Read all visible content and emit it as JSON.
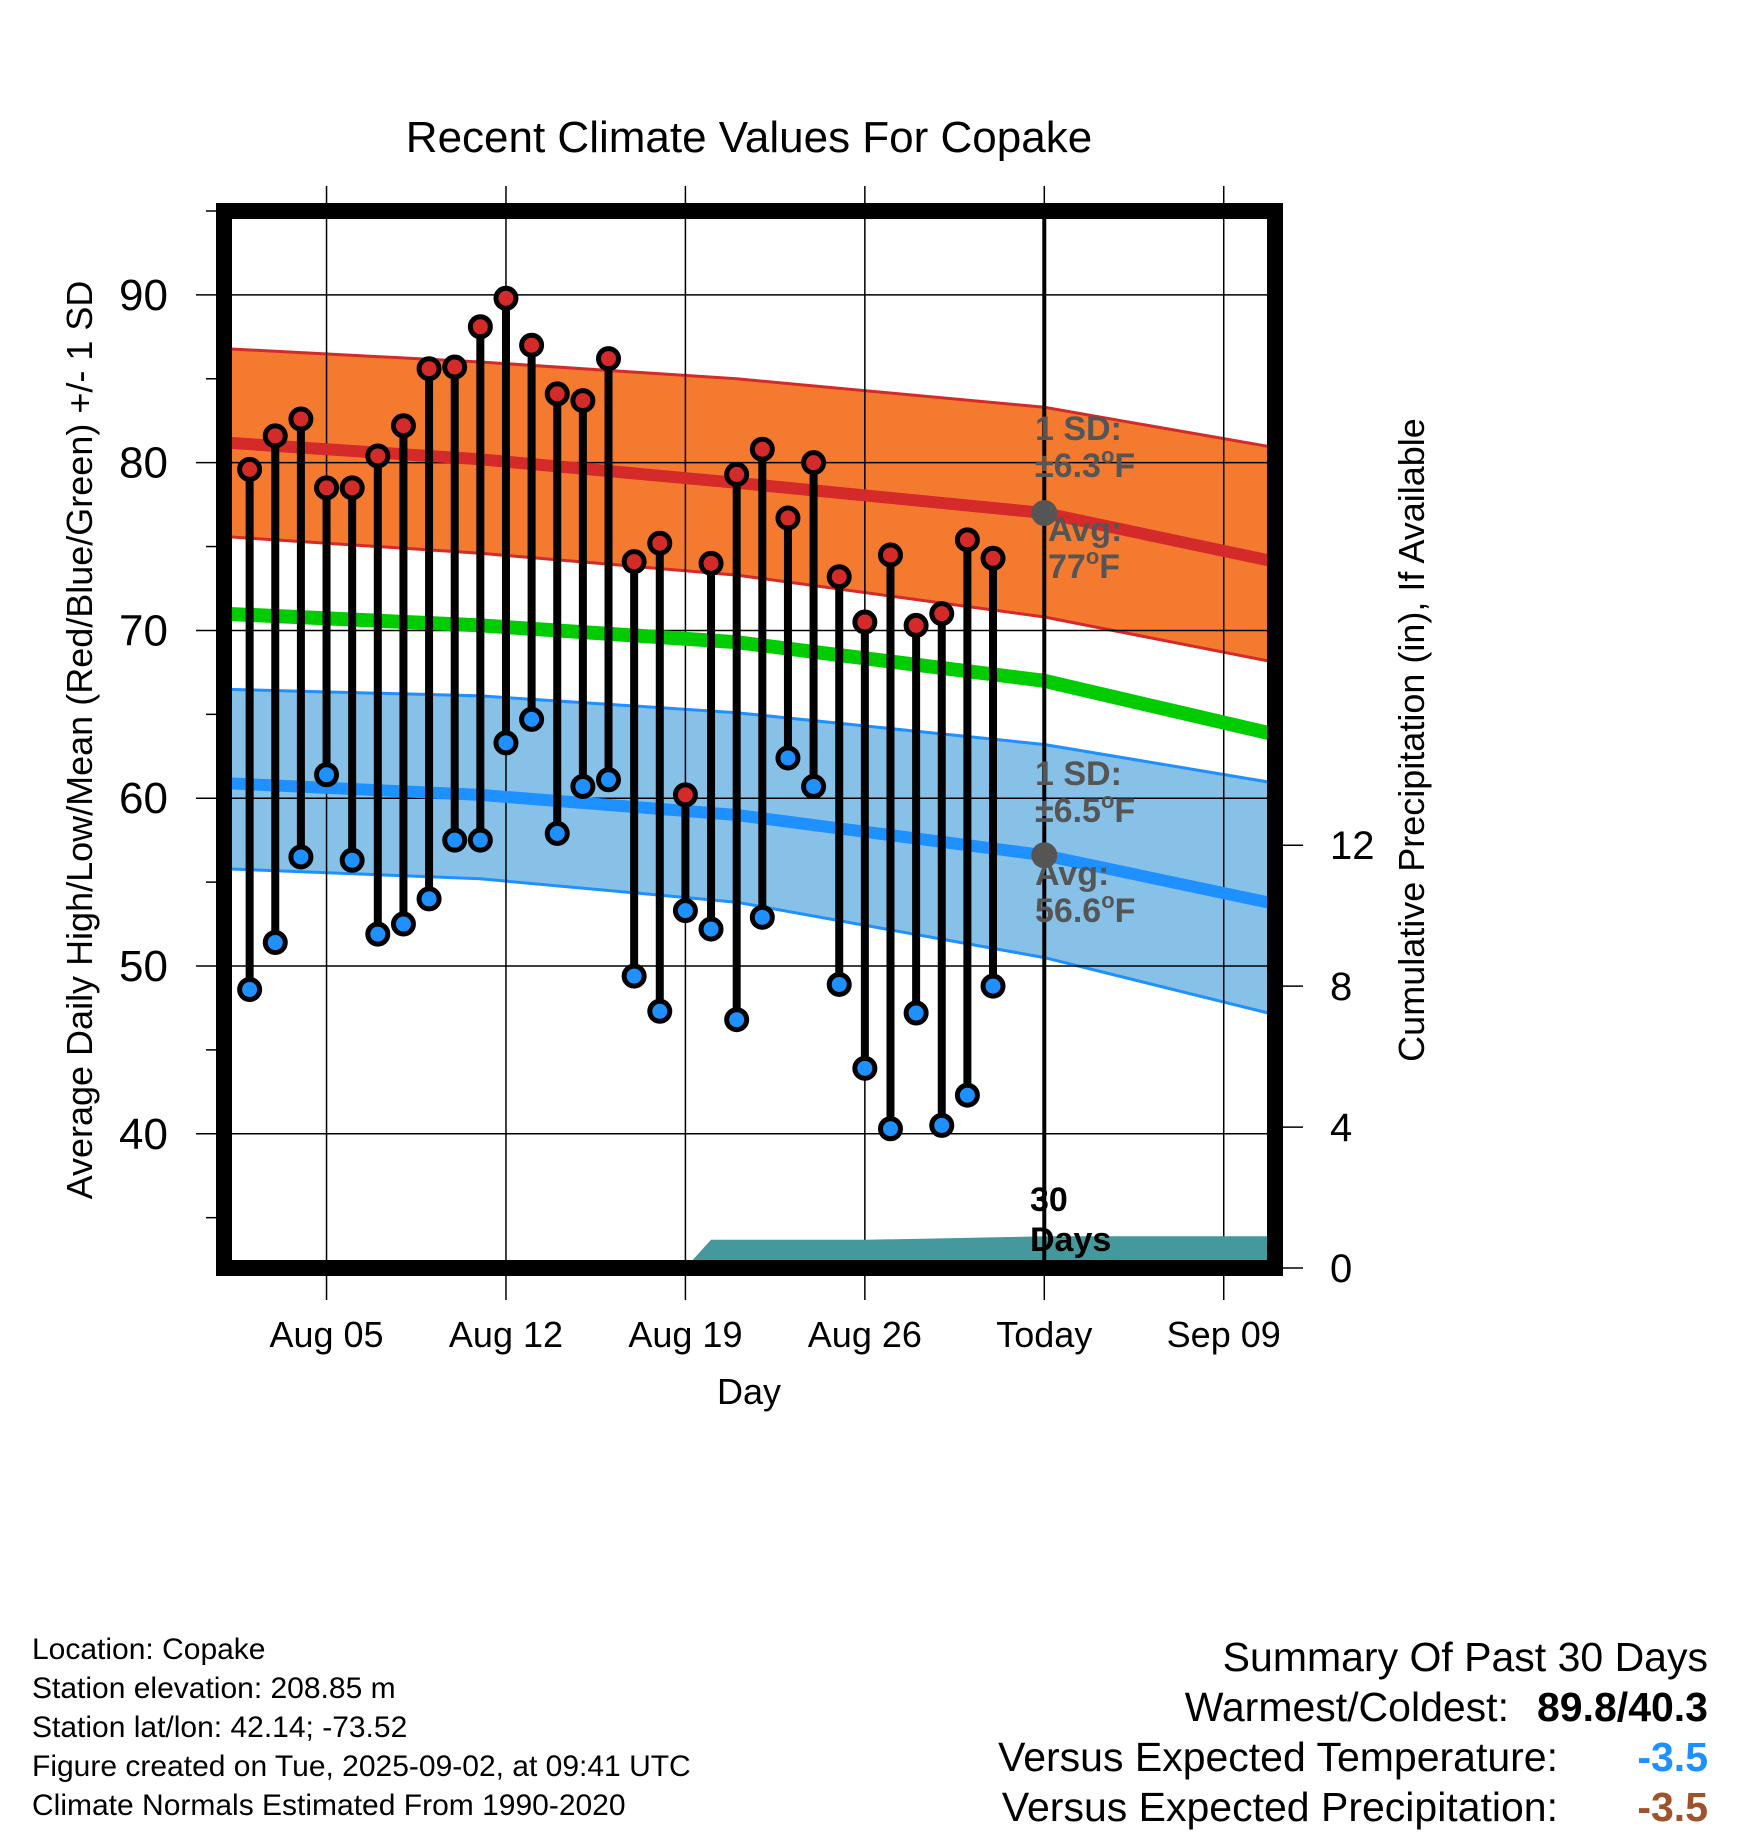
{
  "title": "Recent Climate Values For Copake",
  "chart_data": {
    "type": "line",
    "title": "Recent Climate Values For Copake",
    "xlabel": "Day",
    "ylabel_left": "Average Daily High/Low/Mean (Red/Blue/Green) +/- 1 SD",
    "ylabel_right": "Cumulative Precipitation (in), If Available",
    "ylim_left": [
      32,
      95
    ],
    "ylim_right": [
      0,
      30
    ],
    "xlim": [
      "2025-08-01",
      "2025-09-11"
    ],
    "x_ticks": [
      "Aug 05",
      "Aug 12",
      "Aug 19",
      "Aug 26",
      "Today",
      "Sep 09"
    ],
    "y_ticks_left": [
      40,
      50,
      60,
      70,
      80,
      90
    ],
    "y_ticks_right": [
      0,
      4,
      8,
      12
    ],
    "today": "2025-09-02",
    "today_label": "30 Days",
    "grid": true,
    "daily": {
      "dates": [
        "2025-08-02",
        "2025-08-03",
        "2025-08-04",
        "2025-08-05",
        "2025-08-06",
        "2025-08-07",
        "2025-08-08",
        "2025-08-09",
        "2025-08-10",
        "2025-08-11",
        "2025-08-12",
        "2025-08-13",
        "2025-08-14",
        "2025-08-15",
        "2025-08-16",
        "2025-08-17",
        "2025-08-18",
        "2025-08-19",
        "2025-08-20",
        "2025-08-21",
        "2025-08-22",
        "2025-08-23",
        "2025-08-24",
        "2025-08-25",
        "2025-08-26",
        "2025-08-27",
        "2025-08-28",
        "2025-08-29",
        "2025-08-30",
        "2025-08-31",
        "2025-09-01"
      ],
      "highs": [
        79.6,
        81.6,
        82.6,
        78.5,
        78.5,
        80.4,
        82.2,
        85.6,
        85.7,
        88.1,
        89.8,
        87.0,
        84.1,
        83.7,
        86.2,
        74.1,
        75.2,
        60.2,
        74.0,
        79.3,
        80.8,
        76.7,
        80.0,
        73.2,
        70.5,
        74.5,
        70.3,
        71.0,
        75.4,
        74.3,
        null
      ],
      "lows": [
        48.6,
        51.4,
        56.5,
        61.4,
        56.3,
        51.9,
        52.5,
        54.0,
        57.5,
        57.5,
        63.3,
        64.7,
        57.9,
        60.7,
        61.1,
        49.4,
        47.3,
        53.3,
        52.2,
        46.8,
        52.9,
        62.4,
        60.7,
        48.9,
        43.9,
        40.3,
        47.2,
        40.5,
        42.3,
        48.8,
        null
      ]
    },
    "normals": {
      "dates": [
        "2025-08-01",
        "2025-08-11",
        "2025-08-21",
        "2025-09-02",
        "2025-09-11"
      ],
      "high_mean": [
        81.2,
        80.2,
        78.8,
        77.0,
        74.1
      ],
      "high_sd_upper": [
        86.8,
        86.0,
        85.0,
        83.3,
        80.9
      ],
      "high_sd_lower": [
        75.6,
        74.6,
        73.3,
        70.8,
        68.1
      ],
      "mean": [
        71.0,
        70.3,
        69.3,
        67.0,
        63.8
      ],
      "low_mean": [
        60.9,
        60.2,
        59.0,
        56.6,
        53.7
      ],
      "low_sd_upper": [
        66.5,
        66.1,
        65.1,
        63.2,
        60.9
      ],
      "low_sd_lower": [
        55.8,
        55.2,
        53.8,
        50.5,
        47.1
      ]
    },
    "precip_cumulative": {
      "dates": [
        "2025-08-19",
        "2025-08-20",
        "2025-08-26",
        "2025-09-02",
        "2025-09-11"
      ],
      "values": [
        0,
        0.8,
        0.8,
        0.9,
        0.9
      ]
    },
    "annotations": {
      "high_sd": "1 SD:",
      "high_sd_val": "±6.3",
      "high_avg": "Avg:",
      "high_avg_val": "77",
      "low_sd": "1 SD:",
      "low_sd_val": "±6.5",
      "low_avg": "Avg:",
      "low_avg_val": "56.6",
      "unit_o": "o",
      "unit_f": "F"
    },
    "colors": {
      "high": "#d42a2a",
      "high_band": "#f47a30",
      "mean": "#00cc00",
      "low": "#1e90ff",
      "low_band": "#87c1e8",
      "precip": "#45999c",
      "annotation": "#555555"
    }
  },
  "info": {
    "location": "Location: Copake",
    "elevation": "Station elevation: 208.85 m",
    "latlon": "Station lat/lon: 42.14; -73.52",
    "created": "Figure created on Tue, 2025-09-02, at 09:41 UTC",
    "normals": "Climate Normals Estimated From 1990-2020"
  },
  "summary": {
    "heading": "Summary Of Past 30 Days",
    "warm_cold_label": "Warmest/Coldest:",
    "warm": "89.8",
    "slash": "/",
    "cold": "40.3",
    "temp_label": "Versus Expected Temperature:",
    "temp_value": "-3.5",
    "temp_color": "#1e90ff",
    "precip_label": "Versus Expected Precipitation:",
    "precip_value": "-3.5",
    "precip_color": "#a0522d"
  }
}
